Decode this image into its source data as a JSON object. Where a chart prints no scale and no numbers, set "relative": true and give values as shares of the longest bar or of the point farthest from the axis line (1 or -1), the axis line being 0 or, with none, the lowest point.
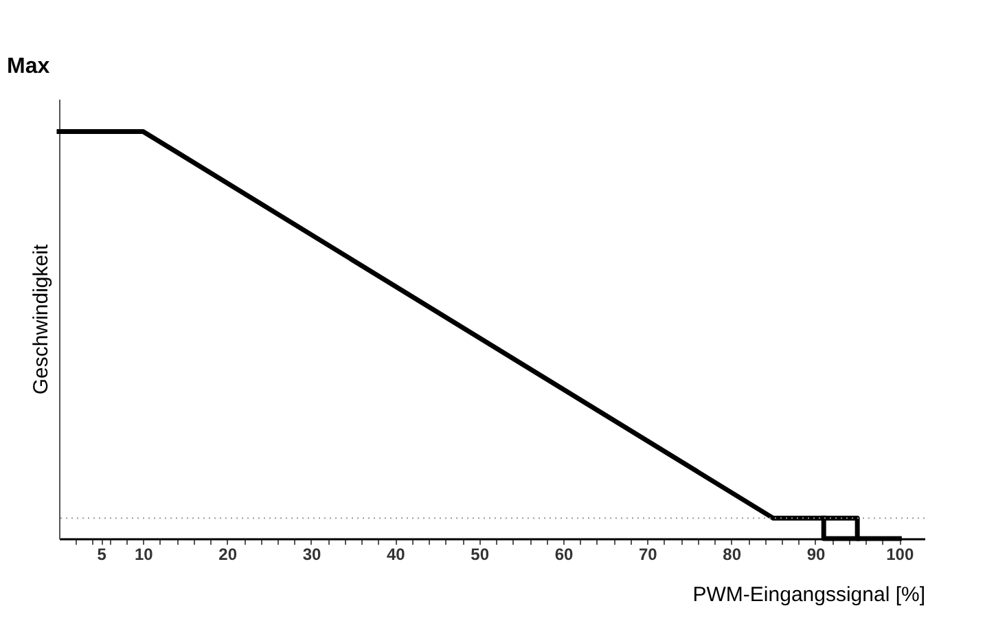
{
  "chart_data": {
    "type": "line",
    "relative": true,
    "xlabel": "PWM-Eingangssignal [%]",
    "ylabel": "Geschwindigkeit",
    "annotations": [
      "Max"
    ],
    "xlim": [
      0,
      103
    ],
    "xticks": [
      5,
      10,
      20,
      30,
      40,
      50,
      60,
      70,
      80,
      90,
      100,
      {
        "value": 2,
        "label": null
      },
      {
        "value": 4,
        "label": null
      },
      {
        "value": 6,
        "label": null
      },
      {
        "value": 8,
        "label": null
      },
      {
        "value": 12,
        "label": null
      },
      {
        "value": 14,
        "label": null
      },
      {
        "value": 16,
        "label": null
      },
      {
        "value": 18,
        "label": null
      },
      {
        "value": 22,
        "label": null
      },
      {
        "value": 24,
        "label": null
      },
      {
        "value": 26,
        "label": null
      },
      {
        "value": 28,
        "label": null
      },
      {
        "value": 32,
        "label": null
      },
      {
        "value": 34,
        "label": null
      },
      {
        "value": 36,
        "label": null
      },
      {
        "value": 38,
        "label": null
      },
      {
        "value": 42,
        "label": null
      },
      {
        "value": 44,
        "label": null
      },
      {
        "value": 46,
        "label": null
      },
      {
        "value": 48,
        "label": null
      },
      {
        "value": 52,
        "label": null
      },
      {
        "value": 54,
        "label": null
      },
      {
        "value": 56,
        "label": null
      },
      {
        "value": 58,
        "label": null
      },
      {
        "value": 62,
        "label": null
      },
      {
        "value": 64,
        "label": null
      },
      {
        "value": 66,
        "label": null
      },
      {
        "value": 68,
        "label": null
      },
      {
        "value": 72,
        "label": null
      },
      {
        "value": 74,
        "label": null
      },
      {
        "value": 76,
        "label": null
      },
      {
        "value": 78,
        "label": null
      },
      {
        "value": 82,
        "label": null
      },
      {
        "value": 84,
        "label": null
      },
      {
        "value": 86,
        "label": null
      },
      {
        "value": 88,
        "label": null
      },
      {
        "value": 92,
        "label": null
      },
      {
        "value": 94,
        "label": null
      },
      {
        "value": 96,
        "label": null
      },
      {
        "value": 98,
        "label": null
      }
    ],
    "tick_labels": "x",
    "grid": false,
    "marker": "none",
    "line_style": "solid",
    "ref_lines": [
      {
        "axis": "y",
        "value": 0.05,
        "label": null,
        "color": "#999999",
        "line_style": "dotted"
      }
    ],
    "series": [
      {
        "color": "#000000",
        "x": [
          0,
          10,
          85,
          95,
          95,
          100
        ],
        "values": [
          1,
          1,
          0.05,
          0.05,
          0,
          0
        ]
      },
      {
        "color": "#000000",
        "x": [
          91,
          91,
          95
        ],
        "values": [
          0.05,
          0,
          0
        ]
      }
    ]
  }
}
